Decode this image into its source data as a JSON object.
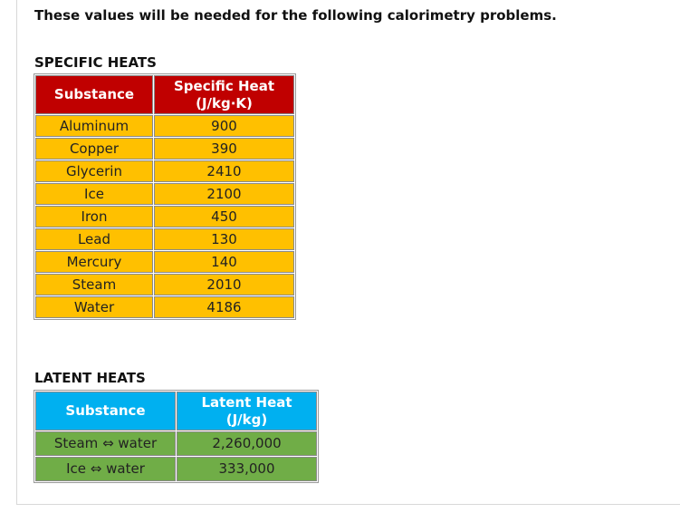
{
  "intro": "These values will be needed for the following calorimetry problems.",
  "specific_heats": {
    "title": "SPECIFIC HEATS",
    "header": {
      "substance": "Substance",
      "value_line1": "Specific Heat",
      "value_line2": "(J/kg∙K)"
    },
    "rows": [
      {
        "substance": "Aluminum",
        "value": "900"
      },
      {
        "substance": "Copper",
        "value": "390"
      },
      {
        "substance": "Glycerin",
        "value": "2410"
      },
      {
        "substance": "Ice",
        "value": "2100"
      },
      {
        "substance": "Iron",
        "value": "450"
      },
      {
        "substance": "Lead",
        "value": "130"
      },
      {
        "substance": "Mercury",
        "value": "140"
      },
      {
        "substance": "Steam",
        "value": "2010"
      },
      {
        "substance": "Water",
        "value": "4186"
      }
    ]
  },
  "latent_heats": {
    "title": "LATENT HEATS",
    "header": {
      "substance": "Substance",
      "value_line1": "Latent Heat",
      "value_line2": "(J/kg)"
    },
    "rows": [
      {
        "substance": "Steam ⇔ water",
        "value": "2,260,000"
      },
      {
        "substance": "Ice ⇔ water",
        "value": "333,000"
      }
    ]
  },
  "colors": {
    "specific_header": "#c00000",
    "specific_cell": "#ffc000",
    "latent_header": "#00b0f0",
    "latent_cell": "#70ad47"
  }
}
